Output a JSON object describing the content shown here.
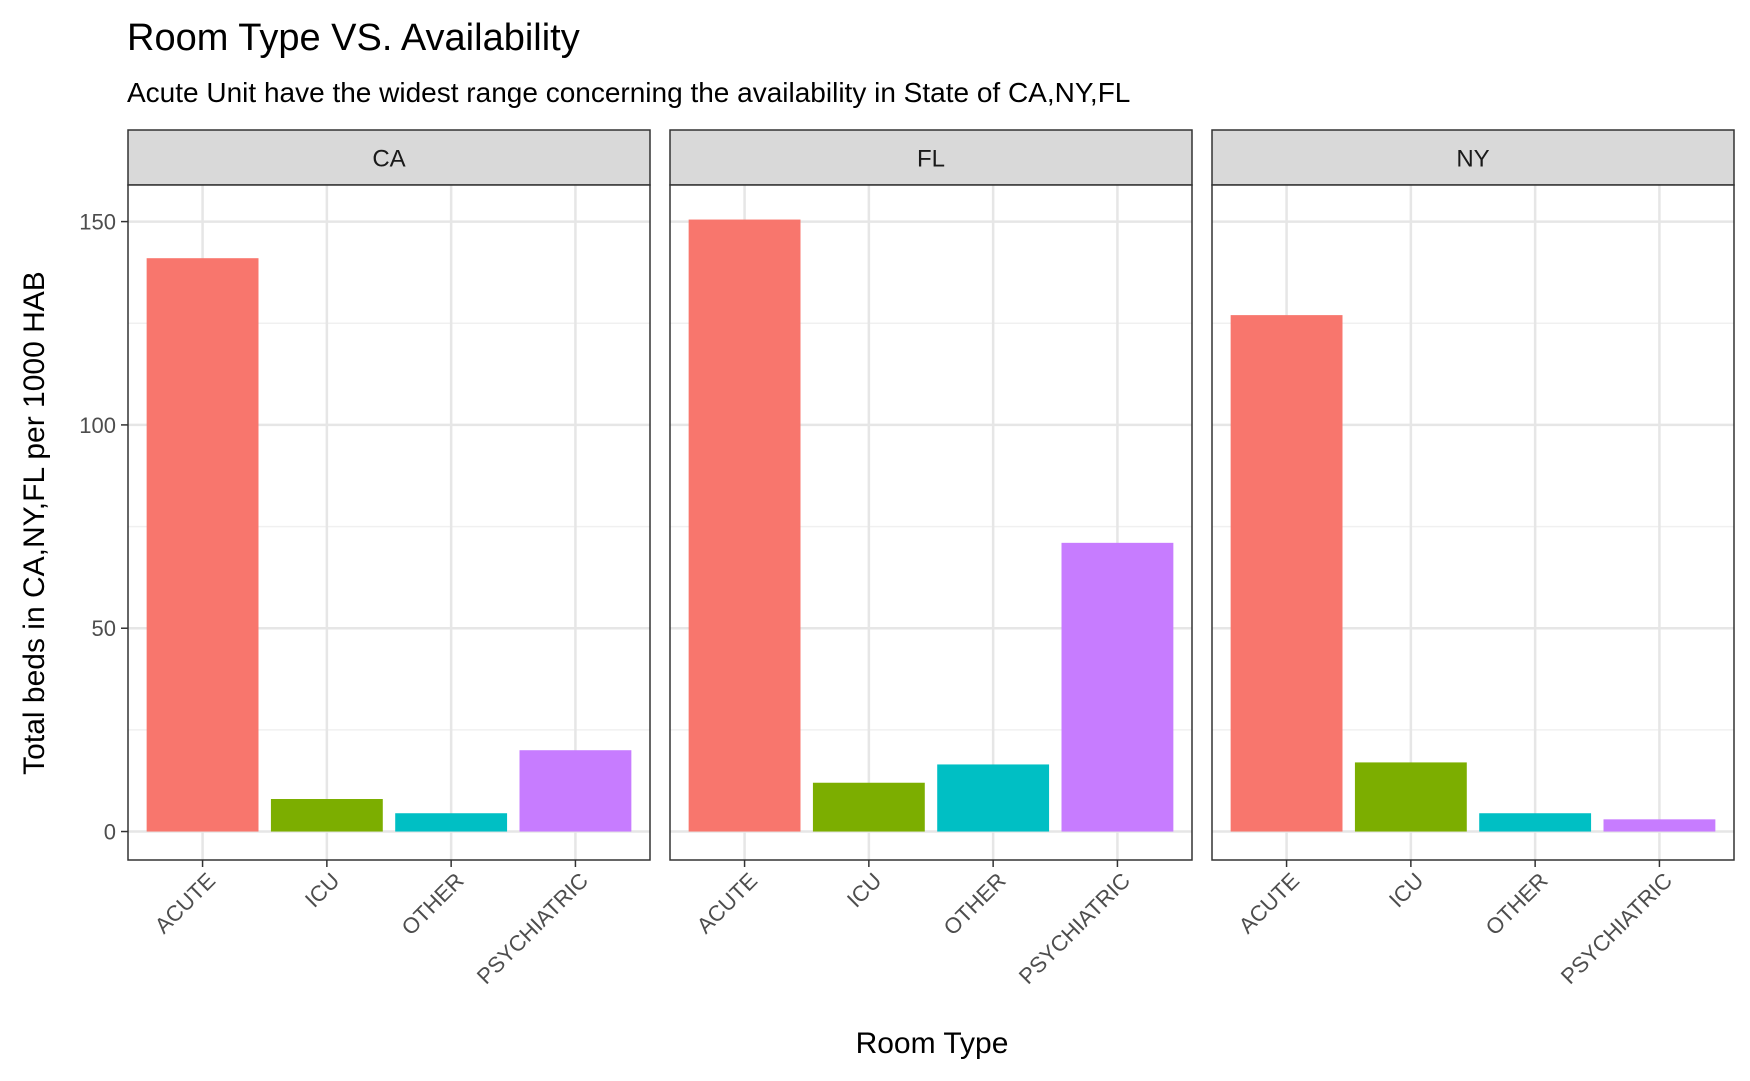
{
  "chart_data": {
    "type": "bar",
    "title": "Room Type VS. Availability",
    "subtitle": "Acute Unit  have the widest range concerning the availability in State of CA,NY,FL",
    "xlabel": "Room Type",
    "ylabel": "Total beds in CA,NY,FL per 1000 HAB",
    "categories": [
      "ACUTE",
      "ICU",
      "OTHER",
      "PSYCHIATRIC"
    ],
    "colors": [
      "#F8766D",
      "#7CAE00",
      "#00BFC4",
      "#C77CFF"
    ],
    "ylim": [
      -7,
      159
    ],
    "yticks": [
      0,
      50,
      100,
      150
    ],
    "grid": true,
    "legend": "none",
    "panels": [
      {
        "name": "CA",
        "values": [
          141,
          8,
          4.5,
          20
        ]
      },
      {
        "name": "FL",
        "values": [
          150.5,
          12,
          16.5,
          71
        ]
      },
      {
        "name": "NY",
        "values": [
          127,
          17,
          4.5,
          3
        ]
      }
    ]
  }
}
